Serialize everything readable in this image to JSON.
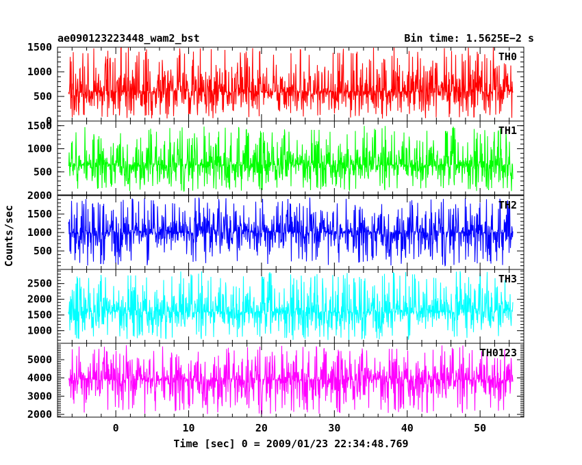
{
  "title_left": "ae090123223448_wam2_bst",
  "title_right": "Bin time: 1.5625E−2 s",
  "ylabel": "Counts/sec",
  "xlabel": "Time [sec] 0 = 2009/01/23 22:34:48.769",
  "chart_data": {
    "type": "line",
    "x_range": [
      -8,
      56
    ],
    "bin_time_s": 0.015625,
    "x_ticks": [
      0,
      10,
      20,
      30,
      40,
      50
    ],
    "x_tick_labels": [
      "0",
      "10",
      "20",
      "30",
      "40",
      "50"
    ],
    "panels": [
      {
        "name": "TH0",
        "color": "#ff0000",
        "ylim": [
          0,
          1500
        ],
        "y_ticks": [
          0,
          500,
          1000,
          1500
        ],
        "y_tick_labels": [
          "0",
          "500",
          "1000",
          "1500"
        ],
        "mean": 600,
        "low": 50,
        "high": 1500
      },
      {
        "name": "TH1",
        "color": "#00ff00",
        "ylim": [
          0,
          1600
        ],
        "y_ticks": [
          500,
          1000,
          1500
        ],
        "y_tick_labels": [
          "500",
          "1000",
          "1500"
        ],
        "mean": 650,
        "low": 80,
        "high": 1500
      },
      {
        "name": "TH2",
        "color": "#0000ff",
        "ylim": [
          0,
          2000
        ],
        "y_ticks": [
          500,
          1000,
          1500,
          2000
        ],
        "y_tick_labels": [
          "500",
          "1000",
          "1500",
          "2000"
        ],
        "mean": 1000,
        "low": 100,
        "high": 1950
      },
      {
        "name": "TH3",
        "color": "#00ffff",
        "ylim": [
          600,
          2950
        ],
        "y_ticks": [
          1000,
          1500,
          2000,
          2500
        ],
        "y_tick_labels": [
          "1000",
          "1500",
          "2000",
          "2500"
        ],
        "mean": 1600,
        "low": 700,
        "high": 2900
      },
      {
        "name": "TH0123",
        "color": "#ff00ff",
        "ylim": [
          1850,
          5900
        ],
        "y_ticks": [
          2000,
          3000,
          4000,
          5000
        ],
        "y_tick_labels": [
          "2000",
          "3000",
          "4000",
          "5000"
        ],
        "mean": 3900,
        "low": 2000,
        "high": 5800
      }
    ]
  }
}
